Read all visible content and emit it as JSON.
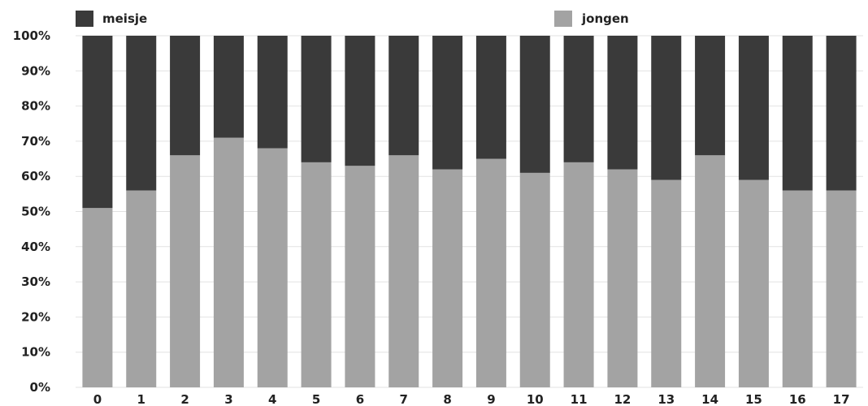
{
  "chart_data": {
    "type": "bar",
    "stacked": true,
    "percent": true,
    "categories": [
      "0",
      "1",
      "2",
      "3",
      "4",
      "5",
      "6",
      "7",
      "8",
      "9",
      "10",
      "11",
      "12",
      "13",
      "14",
      "15",
      "16",
      "17"
    ],
    "series": [
      {
        "name": "jongen",
        "color": "#a3a3a3",
        "values": [
          51,
          56,
          66,
          71,
          68,
          64,
          63,
          66,
          62,
          65,
          61,
          64,
          62,
          59,
          66,
          59,
          56,
          56
        ]
      },
      {
        "name": "meisje",
        "color": "#3a3a3a",
        "values": [
          49,
          44,
          34,
          29,
          32,
          36,
          37,
          34,
          38,
          35,
          39,
          36,
          38,
          41,
          34,
          41,
          44,
          44
        ]
      }
    ],
    "y_ticks": [
      "0%",
      "10%",
      "20%",
      "30%",
      "40%",
      "50%",
      "60%",
      "70%",
      "80%",
      "90%",
      "100%"
    ],
    "ylim": [
      0,
      100
    ],
    "grid": true,
    "legend_position": "top",
    "title": "",
    "xlabel": "",
    "ylabel": ""
  }
}
